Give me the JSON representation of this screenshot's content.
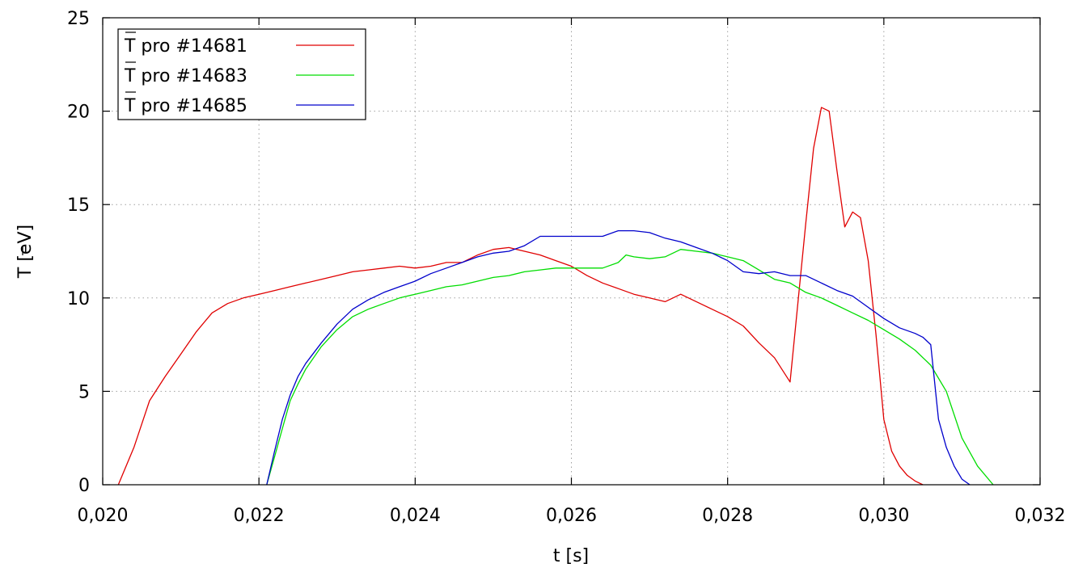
{
  "chart_data": {
    "type": "line",
    "title": "",
    "xlabel": "t [s]",
    "ylabel": "T [eV]",
    "xlim": [
      0.02,
      0.032
    ],
    "ylim": [
      0,
      25
    ],
    "x_ticks": [
      0.02,
      0.022,
      0.024,
      0.026,
      0.028,
      0.03,
      0.032
    ],
    "x_tick_labels": [
      "0,020",
      "0,022",
      "0,024",
      "0,026",
      "0,028",
      "0,030",
      "0,032"
    ],
    "y_ticks": [
      0,
      5,
      10,
      15,
      20,
      25
    ],
    "y_tick_labels": [
      "0",
      "5",
      "10",
      "15",
      "20",
      "25"
    ],
    "grid": true,
    "legend_position": "top-left",
    "series": [
      {
        "name": "T pro #14681",
        "color": "#e00000",
        "x": [
          0.0202,
          0.0204,
          0.0206,
          0.0208,
          0.021,
          0.0212,
          0.0214,
          0.0216,
          0.0218,
          0.022,
          0.0222,
          0.0224,
          0.0226,
          0.0228,
          0.023,
          0.0232,
          0.0234,
          0.0236,
          0.0238,
          0.024,
          0.0242,
          0.0244,
          0.0246,
          0.0248,
          0.025,
          0.0252,
          0.0254,
          0.0256,
          0.0258,
          0.026,
          0.0262,
          0.0264,
          0.0266,
          0.0268,
          0.027,
          0.0272,
          0.0274,
          0.0276,
          0.0278,
          0.028,
          0.0282,
          0.0284,
          0.0286,
          0.0288,
          0.029,
          0.0291,
          0.0292,
          0.0293,
          0.0294,
          0.0295,
          0.0296,
          0.0297,
          0.0298,
          0.0299,
          0.03,
          0.0301,
          0.0302,
          0.0303,
          0.0304,
          0.0305
        ],
        "values": [
          0.0,
          2.0,
          4.5,
          5.8,
          7.0,
          8.2,
          9.2,
          9.7,
          10.0,
          10.2,
          10.4,
          10.6,
          10.8,
          11.0,
          11.2,
          11.4,
          11.5,
          11.6,
          11.7,
          11.6,
          11.7,
          11.9,
          11.9,
          12.3,
          12.6,
          12.7,
          12.5,
          12.3,
          12.0,
          11.7,
          11.2,
          10.8,
          10.5,
          10.2,
          10.0,
          9.8,
          10.2,
          9.8,
          9.4,
          9.0,
          8.5,
          7.6,
          6.8,
          5.5,
          14.0,
          18.0,
          20.2,
          20.0,
          16.8,
          13.8,
          14.6,
          14.3,
          12.0,
          8.0,
          3.5,
          1.8,
          1.0,
          0.5,
          0.2,
          0.0
        ]
      },
      {
        "name": "T pro #14683",
        "color": "#00dd00",
        "x": [
          0.0221,
          0.0222,
          0.0223,
          0.0224,
          0.0225,
          0.0226,
          0.0228,
          0.023,
          0.0232,
          0.0234,
          0.0236,
          0.0238,
          0.024,
          0.0242,
          0.0244,
          0.0246,
          0.0248,
          0.025,
          0.0252,
          0.0254,
          0.0256,
          0.0258,
          0.026,
          0.0262,
          0.0264,
          0.0266,
          0.0267,
          0.0268,
          0.027,
          0.0272,
          0.0274,
          0.0276,
          0.0278,
          0.028,
          0.0282,
          0.0284,
          0.0286,
          0.0288,
          0.029,
          0.0292,
          0.0294,
          0.0296,
          0.0298,
          0.03,
          0.0302,
          0.0304,
          0.0306,
          0.0308,
          0.031,
          0.0312,
          0.0314
        ],
        "values": [
          0.0,
          1.5,
          3.0,
          4.5,
          5.4,
          6.2,
          7.4,
          8.3,
          9.0,
          9.4,
          9.7,
          10.0,
          10.2,
          10.4,
          10.6,
          10.7,
          10.9,
          11.1,
          11.2,
          11.4,
          11.5,
          11.6,
          11.6,
          11.6,
          11.6,
          11.9,
          12.3,
          12.2,
          12.1,
          12.2,
          12.6,
          12.5,
          12.4,
          12.2,
          12.0,
          11.5,
          11.0,
          10.8,
          10.3,
          10.0,
          9.6,
          9.2,
          8.8,
          8.3,
          7.8,
          7.2,
          6.4,
          5.0,
          2.5,
          1.0,
          0.0
        ]
      },
      {
        "name": "T pro #14685",
        "color": "#0000cc",
        "x": [
          0.0221,
          0.0222,
          0.0223,
          0.0224,
          0.0225,
          0.0226,
          0.0228,
          0.023,
          0.0232,
          0.0234,
          0.0236,
          0.0238,
          0.024,
          0.0242,
          0.0244,
          0.0246,
          0.0248,
          0.025,
          0.0252,
          0.0254,
          0.0256,
          0.0258,
          0.026,
          0.0262,
          0.0264,
          0.0266,
          0.0268,
          0.027,
          0.0272,
          0.0274,
          0.0276,
          0.0278,
          0.028,
          0.0282,
          0.0284,
          0.0286,
          0.0288,
          0.029,
          0.0292,
          0.0294,
          0.0296,
          0.0298,
          0.03,
          0.0302,
          0.0304,
          0.0305,
          0.0306,
          0.0307,
          0.0308,
          0.0309,
          0.031,
          0.0311
        ],
        "values": [
          0.0,
          1.8,
          3.5,
          4.8,
          5.8,
          6.5,
          7.6,
          8.6,
          9.4,
          9.9,
          10.3,
          10.6,
          10.9,
          11.3,
          11.6,
          11.9,
          12.2,
          12.4,
          12.5,
          12.8,
          13.3,
          13.3,
          13.3,
          13.3,
          13.3,
          13.6,
          13.6,
          13.5,
          13.2,
          13.0,
          12.7,
          12.4,
          12.0,
          11.4,
          11.3,
          11.4,
          11.2,
          11.2,
          10.8,
          10.4,
          10.1,
          9.5,
          8.9,
          8.4,
          8.1,
          7.9,
          7.5,
          3.5,
          2.0,
          1.0,
          0.3,
          0.0
        ]
      }
    ]
  }
}
